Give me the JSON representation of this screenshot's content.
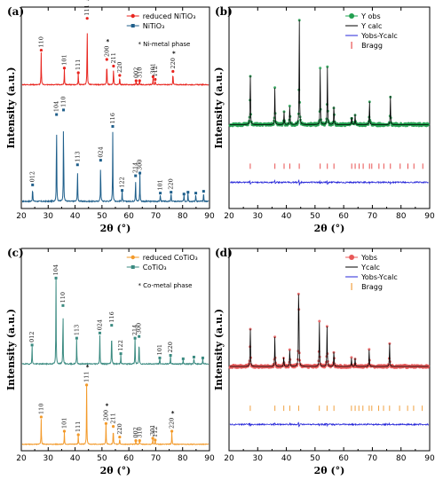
{
  "chart_data": [
    {
      "panel": "(a)",
      "type": "line",
      "xlabel": "2θ (°)",
      "ylabel": "Intensity (a.u.)",
      "xlim": [
        20,
        90
      ],
      "xticks": [
        20,
        30,
        40,
        50,
        60,
        70,
        80,
        90
      ],
      "legend_position": "top-right",
      "note": "* Ni-metal phase",
      "series": [
        {
          "name": "NiTiO3",
          "legend": "NiTiO₃",
          "color": "#1f5f8b",
          "marker": "square",
          "offset": 0.0,
          "scale": 0.62,
          "peaks": [
            [
              24.2,
              0.18
            ],
            [
              33.1,
              0.95
            ],
            [
              35.7,
              1.0
            ],
            [
              40.9,
              0.4
            ],
            [
              49.5,
              0.45
            ],
            [
              54.0,
              0.82
            ],
            [
              57.5,
              0.12
            ],
            [
              62.5,
              0.28
            ],
            [
              64.1,
              0.31
            ],
            [
              71.7,
              0.09
            ],
            [
              75.7,
              0.1
            ],
            [
              80.5,
              0.08
            ],
            [
              82.0,
              0.1
            ],
            [
              84.9,
              0.09
            ],
            [
              87.8,
              0.11
            ]
          ],
          "labels": [
            [
              24.2,
              "012"
            ],
            [
              33.1,
              "104"
            ],
            [
              35.7,
              "110"
            ],
            [
              40.9,
              "113"
            ],
            [
              49.5,
              "024"
            ],
            [
              54.0,
              "116"
            ],
            [
              57.5,
              "122"
            ],
            [
              62.5,
              "214"
            ],
            [
              64.1,
              "300"
            ],
            [
              71.7,
              "101"
            ],
            [
              75.7,
              "220"
            ]
          ]
        },
        {
          "name": "reduced NiTiO3",
          "legend": "reduced NiTiO₃",
          "color": "#e8251f",
          "marker": "circle",
          "offset": 0.62,
          "scale": 0.45,
          "peaks": [
            [
              27.4,
              0.52
            ],
            [
              36.0,
              0.25
            ],
            [
              41.2,
              0.18
            ],
            [
              44.5,
              1.0
            ],
            [
              51.8,
              0.38
            ],
            [
              54.3,
              0.28
            ],
            [
              56.6,
              0.14
            ],
            [
              62.7,
              0.06
            ],
            [
              64.0,
              0.06
            ],
            [
              69.0,
              0.12
            ],
            [
              69.8,
              0.08
            ],
            [
              76.4,
              0.2
            ]
          ],
          "labels": [
            [
              27.4,
              "110"
            ],
            [
              36.0,
              "101"
            ],
            [
              41.2,
              "111"
            ],
            [
              44.5,
              "111",
              "*"
            ],
            [
              51.8,
              "200",
              "*"
            ],
            [
              54.3,
              "211"
            ],
            [
              56.6,
              "220"
            ],
            [
              62.7,
              "002"
            ],
            [
              64.0,
              "310"
            ],
            [
              69.0,
              "301"
            ],
            [
              69.8,
              "112"
            ],
            [
              76.4,
              "220",
              "*"
            ]
          ]
        }
      ]
    },
    {
      "panel": "(b)",
      "type": "line",
      "xlabel": "2θ (°)",
      "ylabel": "Intensity (a.u.)",
      "xlim": [
        20,
        90
      ],
      "xticks": [
        20,
        30,
        40,
        50,
        60,
        70,
        80,
        90
      ],
      "legend_position": "top-right",
      "obs_color": "#22a050",
      "calc_color": "#000000",
      "diff_color": "#2626d9",
      "bragg_color": "#e85050",
      "legend": [
        {
          "label": "Y obs",
          "color": "#22a050",
          "kind": "circle-line"
        },
        {
          "label": "Y calc",
          "color": "#000000",
          "kind": "line"
        },
        {
          "label": "Yobs-Ycalc",
          "color": "#2626d9",
          "kind": "line"
        },
        {
          "label": "Bragg",
          "color": "#e85050",
          "kind": "bar"
        }
      ],
      "peaks": [
        [
          27.4,
          0.55
        ],
        [
          36.0,
          0.35
        ],
        [
          39.2,
          0.12
        ],
        [
          41.2,
          0.2
        ],
        [
          44.5,
          1.0
        ],
        [
          51.8,
          0.5
        ],
        [
          54.3,
          0.55
        ],
        [
          56.6,
          0.2
        ],
        [
          62.8,
          0.1
        ],
        [
          64.0,
          0.1
        ],
        [
          69.0,
          0.22
        ],
        [
          76.3,
          0.26
        ]
      ],
      "bragg": [
        27.4,
        36.0,
        39.2,
        41.2,
        44.5,
        51.8,
        54.3,
        56.6,
        62.8,
        64.0,
        65.4,
        66.8,
        69.0,
        69.8,
        72.3,
        74.0,
        76.3,
        79.7,
        82.4,
        84.5,
        87.6
      ]
    },
    {
      "panel": "(c)",
      "type": "line",
      "xlabel": "2θ (°)",
      "ylabel": "Intensity (a.u.)",
      "xlim": [
        20,
        90
      ],
      "xticks": [
        20,
        30,
        40,
        50,
        60,
        70,
        80,
        90
      ],
      "legend_position": "top-right",
      "note": "* Co-metal phase",
      "series": [
        {
          "name": "CoTiO3",
          "legend": "CoTiO₃",
          "color": "#3a8a80",
          "marker": "square",
          "offset": 0.42,
          "scale": 0.58,
          "peaks": [
            [
              24.0,
              0.22
            ],
            [
              32.9,
              1.0
            ],
            [
              35.5,
              0.68
            ],
            [
              40.6,
              0.3
            ],
            [
              49.2,
              0.36
            ],
            [
              53.6,
              0.45
            ],
            [
              57.0,
              0.12
            ],
            [
              62.3,
              0.3
            ],
            [
              63.8,
              0.32
            ],
            [
              71.5,
              0.07
            ],
            [
              75.5,
              0.1
            ],
            [
              80.2,
              0.06
            ],
            [
              84.2,
              0.08
            ],
            [
              87.5,
              0.07
            ]
          ],
          "labels": [
            [
              24.0,
              "012"
            ],
            [
              32.9,
              "104"
            ],
            [
              35.5,
              "110"
            ],
            [
              40.6,
              "113"
            ],
            [
              49.2,
              "024"
            ],
            [
              53.6,
              "116"
            ],
            [
              57.0,
              "122"
            ],
            [
              62.3,
              "214"
            ],
            [
              63.8,
              "300"
            ],
            [
              71.5,
              "101"
            ],
            [
              75.5,
              "220"
            ]
          ]
        },
        {
          "name": "reduced CoTiO3",
          "legend": "reduced CoTiO₃",
          "color": "#f39a2a",
          "marker": "circle",
          "offset": 0.0,
          "scale": 0.4,
          "peaks": [
            [
              27.4,
              0.46
            ],
            [
              36.0,
              0.22
            ],
            [
              41.2,
              0.16
            ],
            [
              44.3,
              1.0
            ],
            [
              51.5,
              0.35
            ],
            [
              54.2,
              0.3
            ],
            [
              56.6,
              0.12
            ],
            [
              62.6,
              0.06
            ],
            [
              64.0,
              0.06
            ],
            [
              68.9,
              0.1
            ],
            [
              69.8,
              0.07
            ],
            [
              76.0,
              0.22
            ]
          ],
          "labels": [
            [
              27.4,
              "110"
            ],
            [
              36.0,
              "101"
            ],
            [
              41.2,
              "111"
            ],
            [
              44.3,
              "111",
              "*"
            ],
            [
              51.5,
              "200",
              "*"
            ],
            [
              54.2,
              "211"
            ],
            [
              56.6,
              "220"
            ],
            [
              62.6,
              "002"
            ],
            [
              64.0,
              "310"
            ],
            [
              68.9,
              "301"
            ],
            [
              69.8,
              "112"
            ],
            [
              76.0,
              "220",
              "*"
            ]
          ]
        }
      ]
    },
    {
      "panel": "(d)",
      "type": "line",
      "xlabel": "2θ (°)",
      "ylabel": "Intensity (a.u.)",
      "xlim": [
        20,
        90
      ],
      "xticks": [
        20,
        30,
        40,
        50,
        60,
        70,
        80,
        90
      ],
      "legend_position": "top-right",
      "obs_color": "#e85858",
      "calc_color": "#000000",
      "diff_color": "#2626d9",
      "bragg_color": "#f0a040",
      "legend": [
        {
          "label": "Yobs",
          "color": "#e85858",
          "kind": "circle-line"
        },
        {
          "label": "Ycalc",
          "color": "#000000",
          "kind": "line"
        },
        {
          "label": "Yobs-Ycalc",
          "color": "#2626d9",
          "kind": "line"
        },
        {
          "label": "Bragg",
          "color": "#f0a040",
          "kind": "bar"
        }
      ],
      "peaks": [
        [
          27.4,
          0.42
        ],
        [
          36.0,
          0.28
        ],
        [
          39.1,
          0.1
        ],
        [
          41.2,
          0.18
        ],
        [
          44.3,
          1.0
        ],
        [
          51.5,
          0.42
        ],
        [
          54.2,
          0.38
        ],
        [
          56.6,
          0.16
        ],
        [
          62.7,
          0.08
        ],
        [
          64.0,
          0.08
        ],
        [
          68.9,
          0.16
        ],
        [
          76.0,
          0.22
        ]
      ],
      "bragg": [
        27.4,
        36.0,
        39.1,
        41.2,
        44.3,
        51.5,
        54.2,
        56.6,
        62.7,
        64.0,
        65.3,
        66.7,
        68.9,
        69.8,
        72.2,
        73.9,
        76.0,
        79.5,
        82.3,
        84.4,
        87.4
      ]
    }
  ]
}
